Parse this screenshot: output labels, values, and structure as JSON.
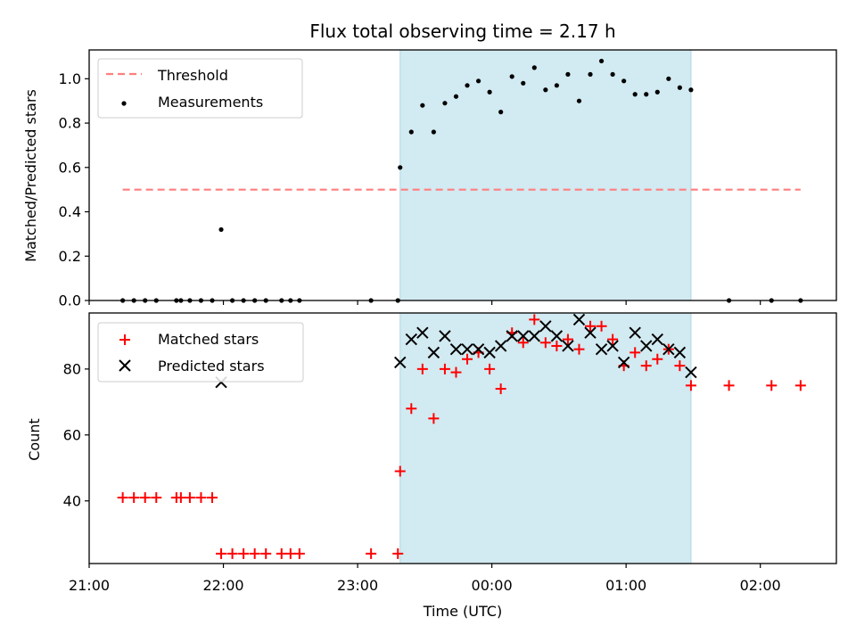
{
  "chart_data": [
    {
      "type": "scatter",
      "title": "Flux total observing time = 2.17 h",
      "ylabel": "Matched/Predicted stars",
      "xlabel": "",
      "xlim": [
        "21:00",
        "02:34"
      ],
      "ylim": [
        0,
        1.13
      ],
      "y_ticks": [
        "0.0",
        "0.2",
        "0.4",
        "0.6",
        "0.8",
        "1.0"
      ],
      "shaded_region": {
        "start": "23:19",
        "end": "01:29",
        "color": "#add8e6"
      },
      "threshold": {
        "name": "Threshold",
        "value": 0.5,
        "start": "21:15",
        "end": "02:18",
        "color": "#ff7f7f"
      },
      "series": [
        {
          "name": "Measurements",
          "color": "#000000",
          "x": [
            "21:15",
            "21:20",
            "21:25",
            "21:30",
            "21:39",
            "21:41",
            "21:45",
            "21:50",
            "21:55",
            "21:59",
            "22:04",
            "22:09",
            "22:14",
            "22:19",
            "22:26",
            "22:30",
            "22:34",
            "23:06",
            "23:18",
            "23:19",
            "23:24",
            "23:29",
            "23:34",
            "23:39",
            "23:44",
            "23:49",
            "23:54",
            "23:59",
            "24:04",
            "24:09",
            "24:14",
            "24:19",
            "24:24",
            "24:29",
            "24:34",
            "24:39",
            "24:44",
            "24:49",
            "24:54",
            "24:59",
            "25:04",
            "25:09",
            "25:14",
            "25:19",
            "25:24",
            "25:29",
            "25:46",
            "26:05",
            "26:18"
          ],
          "y": [
            0,
            0,
            0,
            0,
            0,
            0,
            0,
            0,
            0,
            0.32,
            0,
            0,
            0,
            0,
            0,
            0,
            0,
            0,
            0,
            0.6,
            0.76,
            0.88,
            0.76,
            0.89,
            0.92,
            0.97,
            0.99,
            0.94,
            0.85,
            1.01,
            0.98,
            1.05,
            0.95,
            0.97,
            1.02,
            0.9,
            1.02,
            1.08,
            1.02,
            0.99,
            0.93,
            0.93,
            0.94,
            1.0,
            0.96,
            0.95,
            0,
            0,
            0
          ]
        }
      ]
    },
    {
      "type": "scatter",
      "title": "",
      "xlabel": "Time (UTC)",
      "ylabel": "Count",
      "ylim": [
        21,
        97
      ],
      "x_ticks": [
        "21:00",
        "22:00",
        "23:00",
        "00:00",
        "01:00",
        "02:00"
      ],
      "y_ticks": [
        "40",
        "60",
        "80"
      ],
      "shaded_region": {
        "start": "23:19",
        "end": "01:29",
        "color": "#add8e6"
      },
      "series": [
        {
          "name": "Matched stars",
          "marker": "plus",
          "color": "#ff0000",
          "x": [
            "21:15",
            "21:20",
            "21:25",
            "21:30",
            "21:39",
            "21:41",
            "21:45",
            "21:50",
            "21:55",
            "21:59",
            "22:04",
            "22:09",
            "22:14",
            "22:19",
            "22:26",
            "22:30",
            "22:34",
            "23:06",
            "23:18",
            "23:19",
            "23:24",
            "23:29",
            "23:34",
            "23:39",
            "23:44",
            "23:49",
            "23:54",
            "23:59",
            "24:04",
            "24:09",
            "24:14",
            "24:19",
            "24:24",
            "24:29",
            "24:34",
            "24:39",
            "24:44",
            "24:49",
            "24:54",
            "24:59",
            "25:04",
            "25:09",
            "25:14",
            "25:19",
            "25:24",
            "25:29",
            "25:46",
            "26:05",
            "26:18"
          ],
          "y": [
            41,
            41,
            41,
            41,
            41,
            41,
            41,
            41,
            41,
            24,
            24,
            24,
            24,
            24,
            24,
            24,
            24,
            24,
            24,
            49,
            68,
            80,
            65,
            80,
            79,
            83,
            85,
            80,
            74,
            91,
            88,
            95,
            88,
            87,
            89,
            86,
            93,
            93,
            89,
            81,
            85,
            81,
            83,
            86,
            81,
            75,
            75,
            75,
            75
          ]
        },
        {
          "name": "Predicted stars",
          "marker": "x",
          "color": "#000000",
          "x": [
            "21:59",
            "23:19",
            "23:24",
            "23:29",
            "23:34",
            "23:39",
            "23:44",
            "23:49",
            "23:54",
            "23:59",
            "24:04",
            "24:09",
            "24:14",
            "24:19",
            "24:24",
            "24:29",
            "24:34",
            "24:39",
            "24:44",
            "24:49",
            "24:54",
            "24:59",
            "25:04",
            "25:09",
            "25:14",
            "25:19",
            "25:24",
            "25:29"
          ],
          "y": [
            76,
            82,
            89,
            91,
            85,
            90,
            86,
            86,
            86,
            85,
            87,
            90,
            90,
            90,
            93,
            90,
            87,
            95,
            91,
            86,
            87,
            82,
            91,
            87,
            89,
            86,
            85,
            79
          ]
        }
      ]
    }
  ]
}
